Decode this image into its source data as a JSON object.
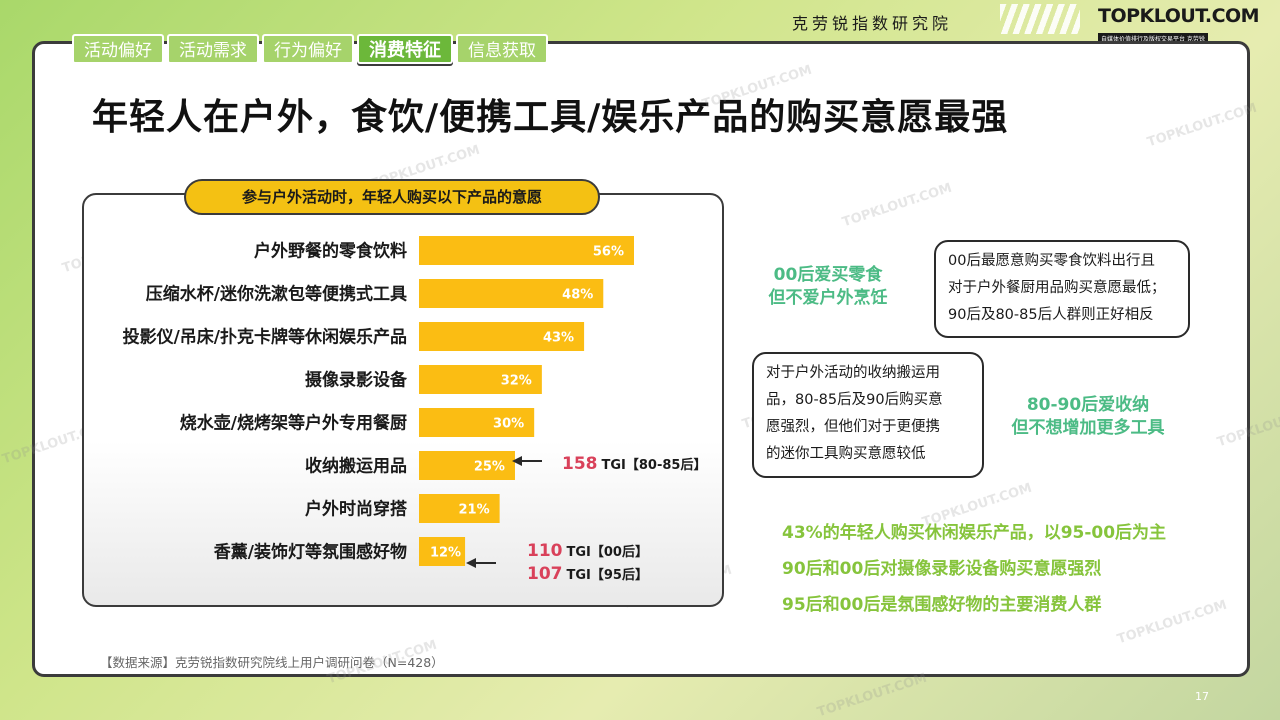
{
  "header": {
    "org_name": "克劳锐指数研究院",
    "brand": "TOPKLOUT.COM",
    "brand_sub": "自媒体价值排行及版权交易平台 克劳锐"
  },
  "tabs": [
    {
      "label": "活动偏好",
      "active": false
    },
    {
      "label": "活动需求",
      "active": false
    },
    {
      "label": "行为偏好",
      "active": false
    },
    {
      "label": "消费特征",
      "active": true
    },
    {
      "label": "信息获取",
      "active": false
    }
  ],
  "title": "年轻人在户外，食饮/便携工具/娱乐产品的购买意愿最强",
  "chart_data": {
    "type": "bar",
    "orientation": "horizontal",
    "title": "参与户外活动时，年轻人购买以下产品的意愿",
    "categories": [
      "户外野餐的零食饮料",
      "压缩水杯/迷你洗漱包等便携式工具",
      "投影仪/吊床/扑克卡牌等休闲娱乐产品",
      "摄像录影设备",
      "烧水壶/烧烤架等户外专用餐厨",
      "收纳搬运用品",
      "户外时尚穿搭",
      "香薰/装饰灯等氛围感好物"
    ],
    "values": [
      56,
      48,
      43,
      32,
      30,
      25,
      21,
      12
    ],
    "value_labels": [
      "56%",
      "48%",
      "43%",
      "32%",
      "30%",
      "25%",
      "21%",
      "12%"
    ],
    "bar_color": "#fbbd13"
  },
  "annotations": {
    "tgi_storage": {
      "num": "158",
      "text": "TGI【80-85后】"
    },
    "tgi_ambience_1": {
      "num": "110",
      "text": "TGI【00后】"
    },
    "tgi_ambience_2": {
      "num": "107",
      "text": "TGI【95后】"
    }
  },
  "callouts": {
    "top": [
      "00后最愿意购买零食饮料出行且",
      "对于户外餐厨用品购买意愿最低；",
      "90后及80-85后人群则正好相反"
    ],
    "bottom": [
      "对于户外活动的收纳搬运用",
      "品，80-85后及90后购买意",
      "愿强烈，但他们对于更便携",
      "的迷你工具购买意愿较低"
    ]
  },
  "green_notes": {
    "note1": [
      "00后爱买零食",
      "但不爱户外烹饪"
    ],
    "note2": [
      "80-90后爱收纳",
      "但不想增加更多工具"
    ]
  },
  "summary": [
    "43%的年轻人购买休闲娱乐产品，以95-00后为主",
    "90后和00后对摄像录影设备购买意愿强烈",
    "95后和00后是氛围感好物的主要消费人群"
  ],
  "source": "【数据来源】克劳锐指数研究院线上用户调研问卷（N=428）",
  "page_number": "17",
  "watermark": "TOPKLOUT.COM",
  "colors": {
    "accent_green": "#86c43c",
    "note_green": "#4cbb85",
    "tgi_red": "#d9415a",
    "bar_yellow": "#fbbd13"
  }
}
